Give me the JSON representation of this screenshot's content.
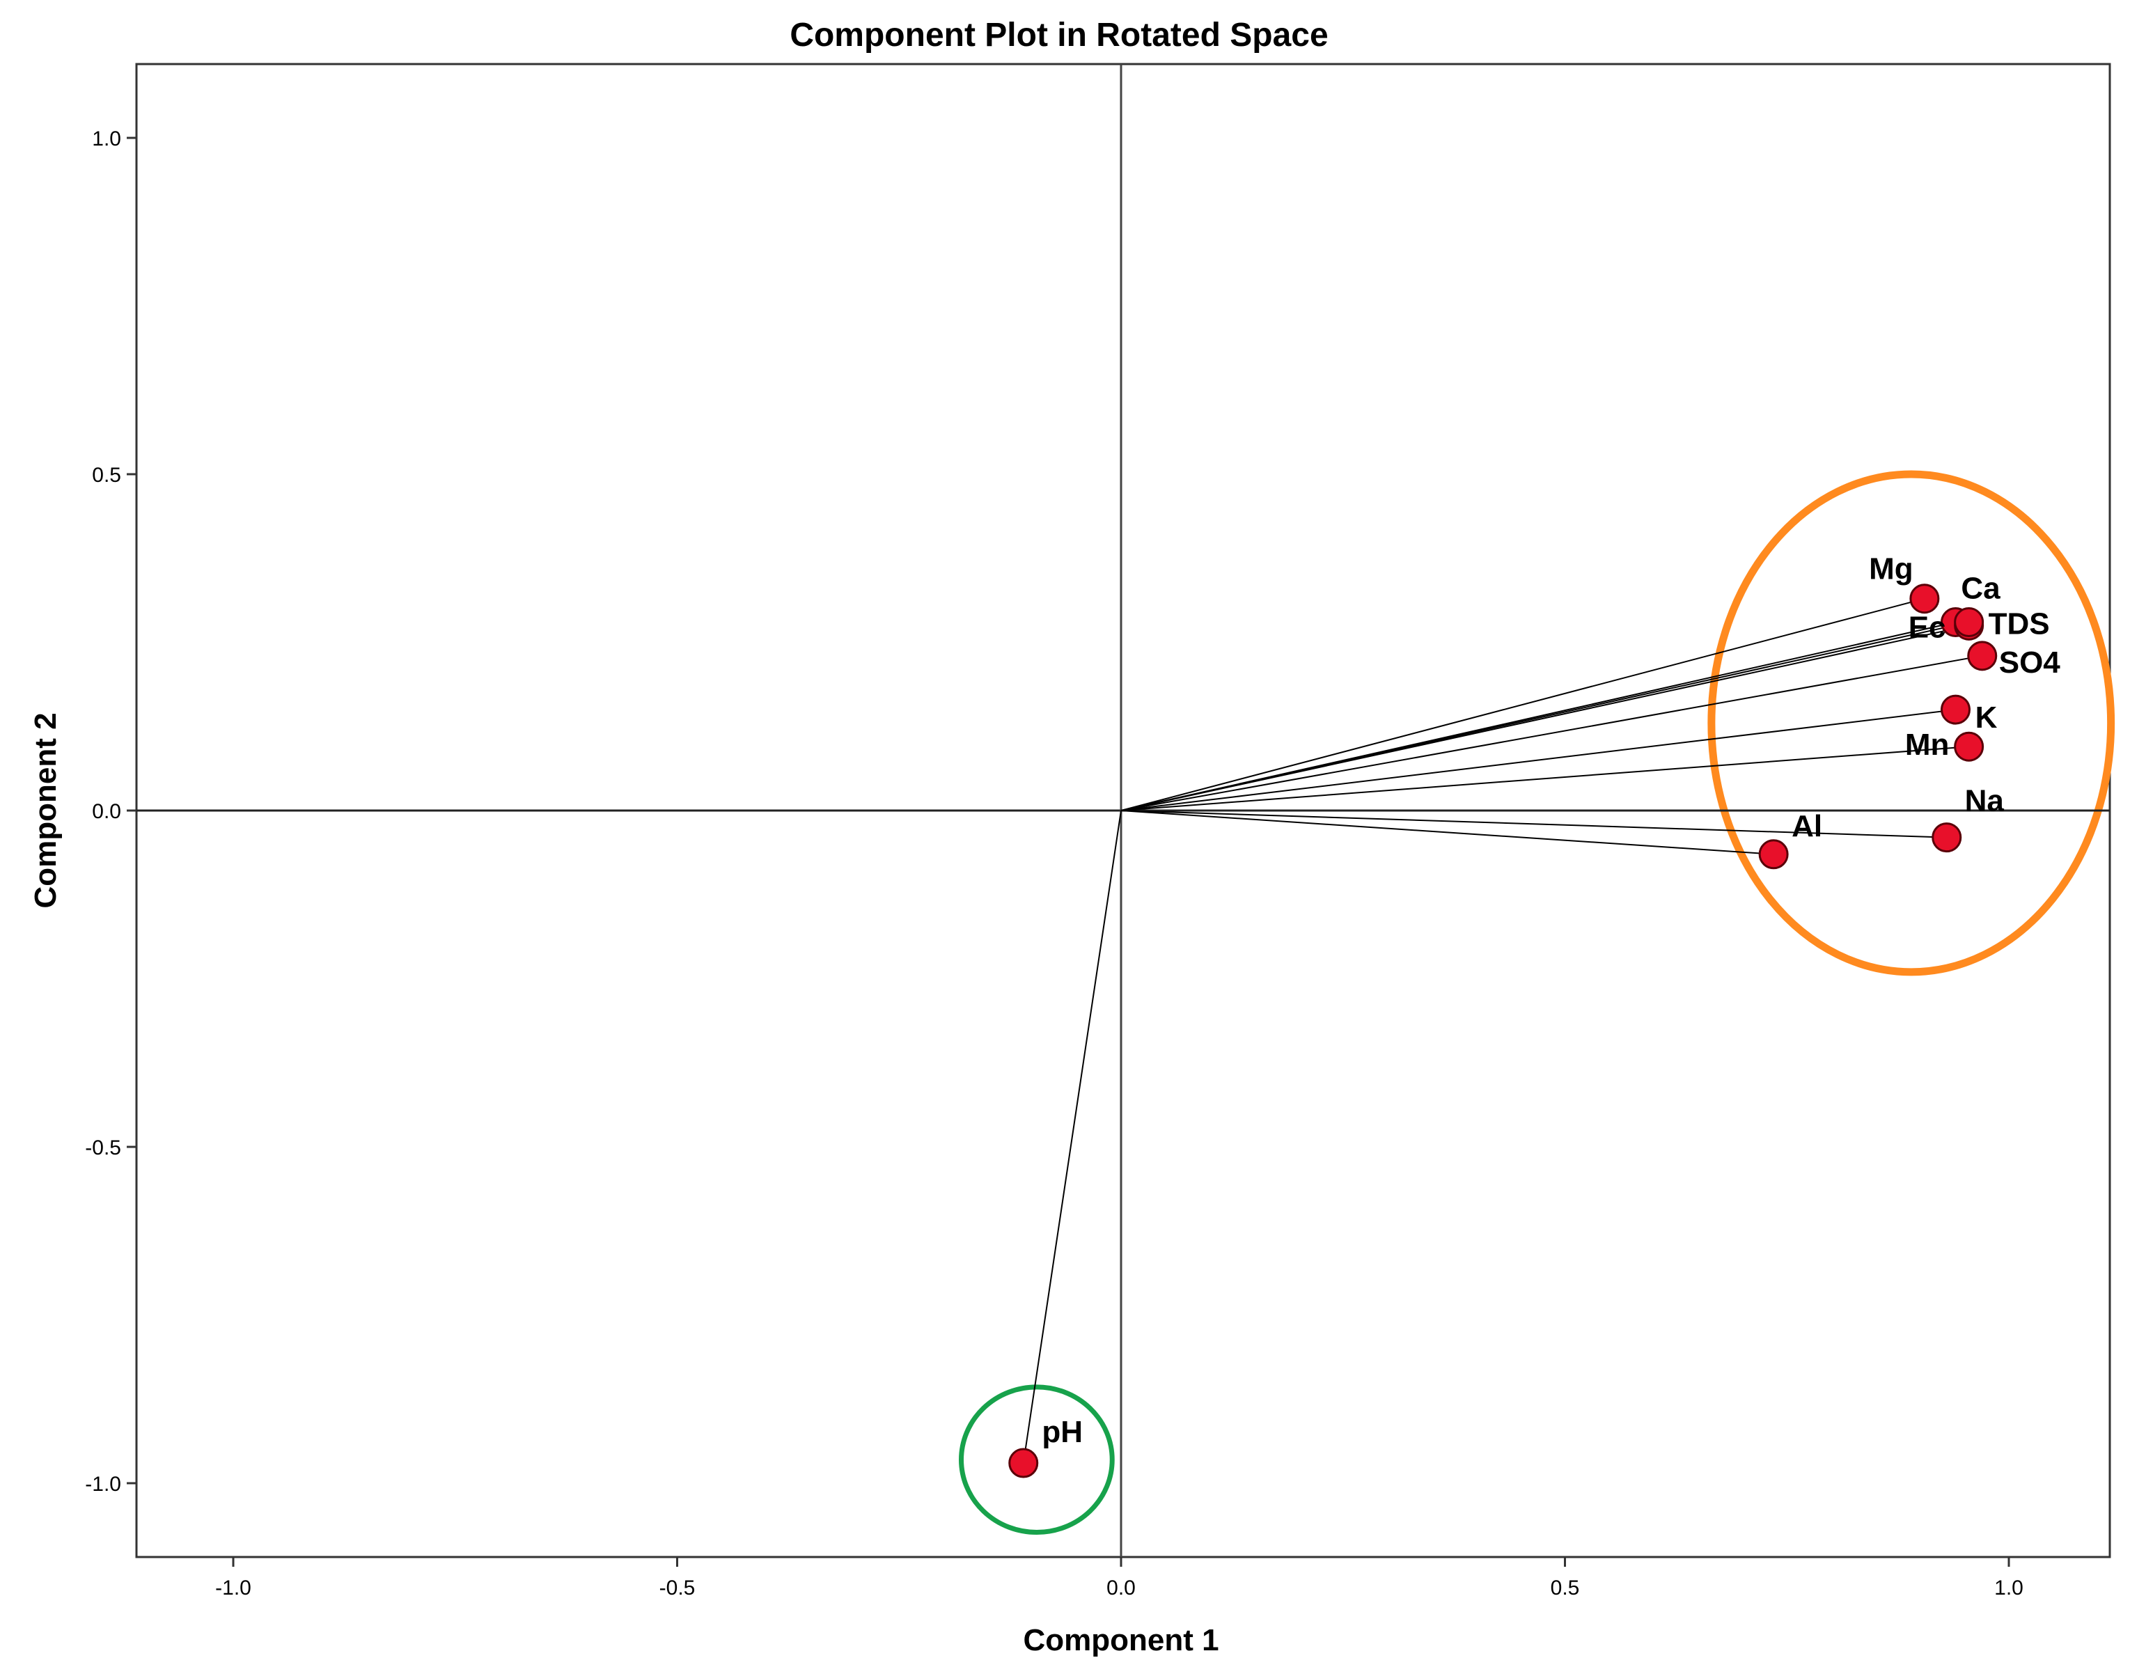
{
  "chart_data": {
    "type": "scatter",
    "title": "Component Plot in Rotated Space",
    "xlabel": "Component 1",
    "ylabel": "Component 2",
    "xlim": [
      -1.1,
      1.1
    ],
    "ylim": [
      -1.1,
      1.1
    ],
    "x_ticks": [
      "-1.0",
      "-0.5",
      "0.0",
      "0.5",
      "1.0"
    ],
    "y_ticks": [
      "1.0",
      "0.5",
      "0.0",
      "-0.5",
      "-1.0"
    ],
    "grid": false,
    "vectors_from_origin": true,
    "point_color": "#e8102a",
    "points": [
      {
        "label": "Mg",
        "x": 0.905,
        "y": 0.315
      },
      {
        "label": "Ca",
        "x": 0.94,
        "y": 0.28
      },
      {
        "label": "TDS",
        "x": 0.955,
        "y": 0.275
      },
      {
        "label": "SO4",
        "x": 0.97,
        "y": 0.23
      },
      {
        "label": "Ec",
        "x": 0.955,
        "y": 0.28
      },
      {
        "label": "K",
        "x": 0.94,
        "y": 0.15
      },
      {
        "label": "Mn",
        "x": 0.955,
        "y": 0.095
      },
      {
        "label": "Na",
        "x": 0.93,
        "y": -0.04
      },
      {
        "label": "Al",
        "x": 0.735,
        "y": -0.065
      },
      {
        "label": "pH",
        "x": -0.11,
        "y": -0.97
      }
    ],
    "clusters": [
      {
        "color": "#ff8a1f",
        "center": [
          0.89,
          0.13
        ],
        "radius": [
          0.225,
          0.37
        ]
      },
      {
        "color": "#17a24b",
        "center": [
          -0.095,
          -0.965
        ],
        "radius": [
          0.085,
          0.108
        ]
      }
    ]
  }
}
